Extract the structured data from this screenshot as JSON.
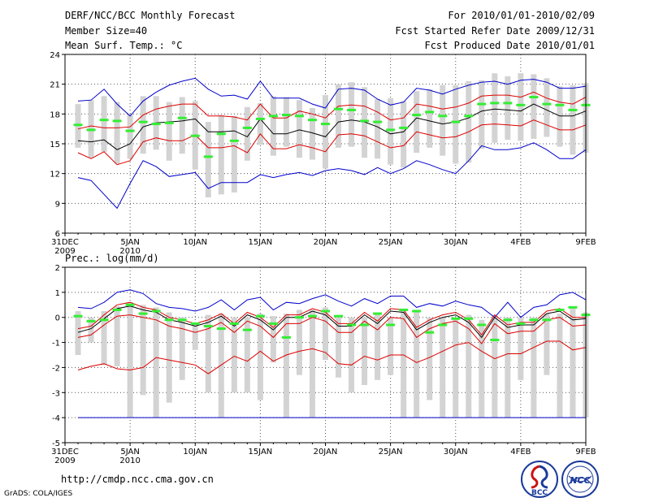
{
  "header": {
    "title": "DERF/NCC/BCC Monthly Forecast",
    "member_size": "Member Size=40",
    "variable": "Mean Surf. Temp.: °C",
    "period": "For 2010/01/01-2010/02/09",
    "refer_date": "Fcst Started Refer Date 2009/12/31",
    "produced_date": "Fcst Produced Date 2010/01/01"
  },
  "footer": {
    "url": "http://cmdp.ncc.cma.gov.cn",
    "credit": "GrADS: COLA/IGES",
    "logo_left_text": "BCC",
    "logo_right_text": "NCC"
  },
  "colors": {
    "envelope": "#0000cc",
    "spread": "#dd0000",
    "mean": "#000000",
    "box": "#d3d3d3",
    "median": "#33ee33",
    "grid": "#555555"
  },
  "chart_data": [
    {
      "type": "box-ensemble",
      "title": "Mean Surf. Temp.: °C",
      "xlabel": "",
      "ylabel": "",
      "x": [
        1,
        2,
        3,
        4,
        5,
        6,
        7,
        8,
        9,
        10,
        11,
        12,
        13,
        14,
        15,
        16,
        17,
        18,
        19,
        20,
        21,
        22,
        23,
        24,
        25,
        26,
        27,
        28,
        29,
        30,
        31,
        32,
        33,
        34,
        35,
        36,
        37,
        38,
        39,
        40
      ],
      "x_ticks": [
        {
          "x": 0,
          "label": "31DEC",
          "sub": "2009"
        },
        {
          "x": 5,
          "label": "5JAN",
          "sub": "2010"
        },
        {
          "x": 10,
          "label": "10JAN",
          "sub": ""
        },
        {
          "x": 15,
          "label": "15JAN",
          "sub": ""
        },
        {
          "x": 20,
          "label": "20JAN",
          "sub": ""
        },
        {
          "x": 25,
          "label": "25JAN",
          "sub": ""
        },
        {
          "x": 30,
          "label": "30JAN",
          "sub": ""
        },
        {
          "x": 35,
          "label": "4FEB",
          "sub": ""
        },
        {
          "x": 40,
          "label": "9FEB",
          "sub": ""
        }
      ],
      "xlim": [
        0,
        40
      ],
      "ylim": [
        6,
        24
      ],
      "y_ticks": [
        6,
        9,
        12,
        15,
        18,
        21,
        24
      ],
      "series": [
        {
          "name": "max",
          "values": [
            19.3,
            19.4,
            20.5,
            19.0,
            17.8,
            19.3,
            20.2,
            20.9,
            21.3,
            21.6,
            20.5,
            19.8,
            19.9,
            19.5,
            21.3,
            19.6,
            19.6,
            19.6,
            19.0,
            18.6,
            20.5,
            20.6,
            20.4,
            19.5,
            18.9,
            19.2,
            20.6,
            20.4,
            20.0,
            20.5,
            20.9,
            21.2,
            21.3,
            21.0,
            21.4,
            21.5,
            21.2,
            20.6,
            20.6,
            20.8
          ]
        },
        {
          "name": "upper",
          "values": [
            16.5,
            16.8,
            16.6,
            16.6,
            16.7,
            17.9,
            18.5,
            18.8,
            19.0,
            19.0,
            17.8,
            17.8,
            17.7,
            17.4,
            19.0,
            17.6,
            17.6,
            18.3,
            18.0,
            17.6,
            18.8,
            18.9,
            18.8,
            18.2,
            17.4,
            17.6,
            19.0,
            18.8,
            18.5,
            18.7,
            19.1,
            19.8,
            19.9,
            19.9,
            19.7,
            20.2,
            19.6,
            19.2,
            19.0,
            19.7
          ]
        },
        {
          "name": "mean",
          "values": [
            15.3,
            15.2,
            15.4,
            14.4,
            15.0,
            16.7,
            17.1,
            17.2,
            17.3,
            17.5,
            16.2,
            16.2,
            16.3,
            15.7,
            17.5,
            16.0,
            16.0,
            16.4,
            16.1,
            15.7,
            17.2,
            17.4,
            17.2,
            16.7,
            16.0,
            16.2,
            17.6,
            17.3,
            17.0,
            17.2,
            17.6,
            18.3,
            18.5,
            18.4,
            18.3,
            19.0,
            18.4,
            17.8,
            17.8,
            18.3
          ]
        },
        {
          "name": "lower",
          "values": [
            14.1,
            13.5,
            14.2,
            12.9,
            13.3,
            15.2,
            15.6,
            15.3,
            15.3,
            15.9,
            14.6,
            14.6,
            14.8,
            14.1,
            16.0,
            14.5,
            14.5,
            14.9,
            14.6,
            14.2,
            15.9,
            16.0,
            15.8,
            15.2,
            14.6,
            14.8,
            16.2,
            15.9,
            15.6,
            15.7,
            16.2,
            16.9,
            17.0,
            16.9,
            16.8,
            17.4,
            16.9,
            16.4,
            16.4,
            16.9
          ]
        },
        {
          "name": "min",
          "values": [
            11.6,
            11.3,
            9.9,
            8.5,
            11.0,
            13.3,
            12.7,
            11.7,
            11.9,
            12.1,
            10.5,
            11.1,
            11.1,
            11.1,
            11.9,
            11.6,
            11.9,
            12.1,
            11.8,
            12.3,
            12.5,
            12.3,
            11.9,
            12.6,
            12.0,
            12.5,
            13.3,
            12.9,
            12.4,
            12.0,
            13.3,
            14.8,
            14.4,
            14.4,
            14.6,
            15.1,
            14.4,
            13.5,
            13.5,
            14.4
          ]
        }
      ],
      "boxes": [
        {
          "low": 14.6,
          "high": 19.0,
          "median": 16.9
        },
        {
          "low": 13.6,
          "high": 19.4,
          "median": 16.4
        },
        {
          "low": 14.2,
          "high": 19.8,
          "median": 17.4
        },
        {
          "low": 13.0,
          "high": 19.2,
          "median": 17.3
        },
        {
          "low": 13.5,
          "high": 18.0,
          "median": 16.3
        },
        {
          "low": 14.0,
          "high": 19.8,
          "median": 17.2
        },
        {
          "low": 14.4,
          "high": 19.8,
          "median": 17.0
        },
        {
          "low": 13.3,
          "high": 19.2,
          "median": 17.1
        },
        {
          "low": 14.0,
          "high": 19.7,
          "median": 17.6
        },
        {
          "low": 12.4,
          "high": 19.3,
          "median": 15.8
        },
        {
          "low": 9.6,
          "high": 17.2,
          "median": 13.7
        },
        {
          "low": 9.9,
          "high": 17.9,
          "median": 16.0
        },
        {
          "low": 10.1,
          "high": 17.8,
          "median": 15.3
        },
        {
          "low": 13.3,
          "high": 18.7,
          "median": 16.6
        },
        {
          "low": 14.9,
          "high": 19.1,
          "median": 17.5
        },
        {
          "low": 13.8,
          "high": 19.8,
          "median": 17.8
        },
        {
          "low": 14.7,
          "high": 19.7,
          "median": 17.9
        },
        {
          "low": 13.6,
          "high": 19.4,
          "median": 17.8
        },
        {
          "low": 13.4,
          "high": 18.6,
          "median": 17.4
        },
        {
          "low": 12.5,
          "high": 19.9,
          "median": 17.0
        },
        {
          "low": 14.6,
          "high": 21.0,
          "median": 18.5
        },
        {
          "low": 14.7,
          "high": 21.2,
          "median": 18.4
        },
        {
          "low": 13.6,
          "high": 20.7,
          "median": 17.3
        },
        {
          "low": 13.5,
          "high": 19.5,
          "median": 17.2
        },
        {
          "low": 12.9,
          "high": 19.6,
          "median": 16.4
        },
        {
          "low": 12.6,
          "high": 19.3,
          "median": 16.6
        },
        {
          "low": 14.1,
          "high": 20.3,
          "median": 17.9
        },
        {
          "low": 14.6,
          "high": 20.5,
          "median": 18.2
        },
        {
          "low": 13.8,
          "high": 20.9,
          "median": 17.8
        },
        {
          "low": 13.0,
          "high": 20.9,
          "median": 17.2
        },
        {
          "low": 13.1,
          "high": 21.3,
          "median": 17.8
        },
        {
          "low": 14.5,
          "high": 21.4,
          "median": 19.0
        },
        {
          "low": 15.1,
          "high": 22.1,
          "median": 19.1
        },
        {
          "low": 15.4,
          "high": 21.8,
          "median": 19.1
        },
        {
          "low": 15.3,
          "high": 22.1,
          "median": 18.9
        },
        {
          "low": 15.5,
          "high": 22.0,
          "median": 19.7
        },
        {
          "low": 15.7,
          "high": 21.6,
          "median": 19.0
        },
        {
          "low": 14.7,
          "high": 20.8,
          "median": 18.9
        },
        {
          "low": 13.9,
          "high": 20.9,
          "median": 18.4
        },
        {
          "low": 14.1,
          "high": 21.1,
          "median": 18.9
        }
      ]
    },
    {
      "type": "box-ensemble",
      "title": "Prec.: log(mm/d)",
      "xlabel": "",
      "ylabel": "",
      "xlim": [
        0,
        40
      ],
      "ylim": [
        -5,
        2
      ],
      "y_ticks": [
        -5,
        -4,
        -3,
        -2,
        -1,
        0,
        1,
        2
      ],
      "x_ticks": [
        {
          "x": 0,
          "label": "31DEC",
          "sub": "2009"
        },
        {
          "x": 5,
          "label": "5JAN",
          "sub": "2010"
        },
        {
          "x": 10,
          "label": "10JAN",
          "sub": ""
        },
        {
          "x": 15,
          "label": "15JAN",
          "sub": ""
        },
        {
          "x": 20,
          "label": "20JAN",
          "sub": ""
        },
        {
          "x": 25,
          "label": "25JAN",
          "sub": ""
        },
        {
          "x": 30,
          "label": "30JAN",
          "sub": ""
        },
        {
          "x": 35,
          "label": "4FEB",
          "sub": ""
        },
        {
          "x": 40,
          "label": "9FEB",
          "sub": ""
        }
      ],
      "series": [
        {
          "name": "max",
          "values": [
            0.4,
            0.35,
            0.6,
            1.0,
            1.1,
            0.95,
            0.55,
            0.4,
            0.35,
            0.25,
            0.4,
            0.7,
            0.3,
            0.7,
            0.8,
            0.3,
            0.6,
            0.55,
            0.75,
            0.9,
            0.65,
            0.45,
            0.75,
            0.55,
            0.85,
            0.85,
            0.4,
            0.55,
            0.45,
            0.65,
            0.5,
            0.4,
            0.0,
            0.6,
            0.0,
            0.4,
            0.5,
            0.9,
            1.0,
            0.7
          ]
        },
        {
          "name": "upper",
          "values": [
            -0.45,
            -0.35,
            0.1,
            0.5,
            0.6,
            0.4,
            0.3,
            0.0,
            -0.1,
            -0.25,
            -0.1,
            0.15,
            -0.25,
            0.2,
            0.0,
            -0.4,
            0.1,
            0.1,
            0.35,
            0.2,
            -0.25,
            -0.25,
            0.2,
            -0.15,
            0.35,
            0.3,
            -0.4,
            -0.1,
            0.1,
            0.2,
            -0.1,
            -0.7,
            0.1,
            -0.3,
            -0.2,
            -0.2,
            0.25,
            0.35,
            0.0,
            0.0
          ]
        },
        {
          "name": "mean",
          "values": [
            -0.6,
            -0.45,
            -0.05,
            0.35,
            0.45,
            0.3,
            0.2,
            -0.1,
            -0.2,
            -0.35,
            -0.2,
            0.05,
            -0.35,
            0.1,
            -0.1,
            -0.5,
            0.0,
            0.0,
            0.25,
            0.1,
            -0.35,
            -0.35,
            0.1,
            -0.25,
            0.25,
            0.2,
            -0.5,
            -0.2,
            0.0,
            0.1,
            -0.2,
            -0.8,
            0.0,
            -0.4,
            -0.3,
            -0.3,
            0.15,
            0.25,
            -0.1,
            -0.05
          ]
        },
        {
          "name": "lower",
          "values": [
            -0.8,
            -0.7,
            -0.3,
            0.05,
            0.1,
            0.0,
            -0.1,
            -0.35,
            -0.45,
            -0.6,
            -0.45,
            -0.2,
            -0.6,
            -0.15,
            -0.35,
            -0.8,
            -0.25,
            -0.25,
            0.0,
            -0.15,
            -0.6,
            -0.6,
            -0.15,
            -0.5,
            0.0,
            -0.05,
            -0.8,
            -0.45,
            -0.25,
            -0.15,
            -0.45,
            -1.05,
            -0.25,
            -0.65,
            -0.55,
            -0.55,
            -0.1,
            0.0,
            -0.35,
            -0.3
          ]
        },
        {
          "name": "min",
          "values": [
            -2.1,
            -1.95,
            -1.85,
            -2.05,
            -2.1,
            -2.0,
            -1.6,
            -1.7,
            -1.8,
            -1.9,
            -2.25,
            -1.9,
            -1.55,
            -1.75,
            -1.35,
            -1.75,
            -1.5,
            -1.35,
            -1.25,
            -1.4,
            -1.85,
            -1.9,
            -1.55,
            -1.7,
            -1.5,
            -1.5,
            -1.8,
            -1.6,
            -1.35,
            -1.1,
            -1.0,
            -1.35,
            -1.65,
            -1.45,
            -1.45,
            -1.2,
            -0.95,
            -0.95,
            -1.3,
            -1.2
          ]
        },
        {
          "name": "floor",
          "values": [
            -4.0,
            -4.0,
            -4.0,
            -4.0,
            -4.0,
            -4.0,
            -4.0,
            -4.0,
            -4.0,
            -4.0,
            -4.0,
            -4.0,
            -4.0,
            -4.0,
            -4.0,
            -4.0,
            -4.0,
            -4.0,
            -4.0,
            -4.0,
            -4.0,
            -4.0,
            -4.0,
            -4.0,
            -4.0,
            -4.0,
            -4.0,
            -4.0,
            -4.0,
            -4.0,
            -4.0,
            -4.0,
            -4.0,
            -4.0,
            -4.0,
            -4.0,
            -4.0,
            -4.0,
            -4.0,
            -4.0
          ]
        }
      ],
      "boxes": [
        {
          "low": -1.5,
          "high": 0.25,
          "median": 0.05
        },
        {
          "low": -1.0,
          "high": 0.0,
          "median": -0.15
        },
        {
          "low": -1.9,
          "high": 0.25,
          "median": -0.1
        },
        {
          "low": -1.95,
          "high": 0.45,
          "median": 0.3
        },
        {
          "low": -4.0,
          "high": 0.6,
          "median": 0.5
        },
        {
          "low": -3.1,
          "high": 0.5,
          "median": 0.15
        },
        {
          "low": -4.0,
          "high": 0.4,
          "median": 0.25
        },
        {
          "low": -3.4,
          "high": 0.2,
          "median": -0.1
        },
        {
          "low": -2.5,
          "high": 0.0,
          "median": -0.1
        },
        {
          "low": -1.3,
          "high": -0.3,
          "median": -0.25
        },
        {
          "low": -3.0,
          "high": 0.1,
          "median": -0.35
        },
        {
          "low": -4.0,
          "high": 0.15,
          "median": -0.45
        },
        {
          "low": -3.0,
          "high": 0.0,
          "median": -0.25
        },
        {
          "low": -3.0,
          "high": 0.0,
          "median": -0.5
        },
        {
          "low": -3.3,
          "high": 0.15,
          "median": 0.05
        },
        {
          "low": -1.8,
          "high": 0.05,
          "median": -0.25
        },
        {
          "low": -4.0,
          "high": 0.15,
          "median": -0.8
        },
        {
          "low": -2.3,
          "high": 0.3,
          "median": 0.0
        },
        {
          "low": -4.0,
          "high": 0.3,
          "median": 0.05
        },
        {
          "low": -1.7,
          "high": 0.4,
          "median": 0.25
        },
        {
          "low": -2.4,
          "high": 0.0,
          "median": 0.05
        },
        {
          "low": -3.0,
          "high": 0.0,
          "median": -0.3
        },
        {
          "low": -2.7,
          "high": 0.0,
          "median": -0.3
        },
        {
          "low": -2.5,
          "high": 0.15,
          "median": 0.15
        },
        {
          "low": -2.3,
          "high": 0.0,
          "median": -0.3
        },
        {
          "low": -4.0,
          "high": 0.3,
          "median": 0.3
        },
        {
          "low": -4.0,
          "high": 0.3,
          "median": 0.25
        },
        {
          "low": -3.3,
          "high": 0.0,
          "median": -0.6
        },
        {
          "low": -4.0,
          "high": 0.0,
          "median": -0.3
        },
        {
          "low": -4.0,
          "high": 0.0,
          "median": -0.05
        },
        {
          "low": -4.0,
          "high": 0.1,
          "median": -0.05
        },
        {
          "low": -4.0,
          "high": -0.1,
          "median": -0.3
        },
        {
          "low": -4.0,
          "high": 0.1,
          "median": -0.9
        },
        {
          "low": -4.0,
          "high": 0.0,
          "median": -0.1
        },
        {
          "low": -2.5,
          "high": 0.0,
          "median": -0.25
        },
        {
          "low": -4.0,
          "high": 0.0,
          "median": -0.1
        },
        {
          "low": -2.3,
          "high": 0.15,
          "median": -0.1
        },
        {
          "low": -4.0,
          "high": 0.15,
          "median": 0.3
        },
        {
          "low": -4.0,
          "high": 0.4,
          "median": 0.4
        },
        {
          "low": -4.0,
          "high": 0.2,
          "median": 0.1
        }
      ]
    }
  ]
}
